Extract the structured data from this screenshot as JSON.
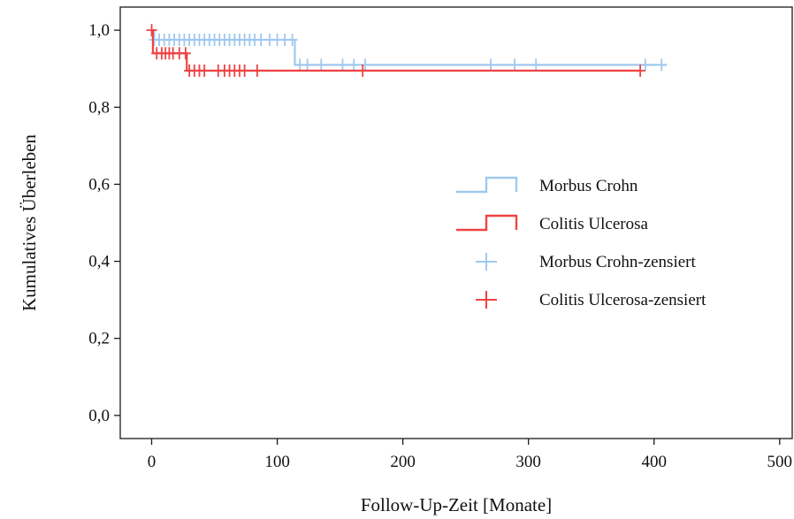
{
  "chart_data": {
    "type": "line",
    "subtype": "kaplan-meier",
    "title": "",
    "xlabel": "Follow-Up-Zeit [Monate]",
    "ylabel": "Kumulatives Überleben",
    "xlim": [
      -25,
      510
    ],
    "ylim": [
      -0.06,
      1.06
    ],
    "xticks": [
      0,
      100,
      200,
      300,
      400,
      500
    ],
    "xtick_labels": [
      "0",
      "100",
      "200",
      "300",
      "400",
      "500"
    ],
    "yticks": [
      0.0,
      0.2,
      0.4,
      0.6,
      0.8,
      1.0
    ],
    "ytick_labels": [
      "0,0",
      "0,2",
      "0,4",
      "0,6",
      "0,8",
      "1,0"
    ],
    "grid": false,
    "legend_position": "center-right",
    "series": [
      {
        "name": "Morbus Crohn",
        "color": "#9fc9ee",
        "steps": [
          [
            0,
            1.0
          ],
          [
            2,
            0.975
          ],
          [
            114,
            0.91
          ],
          [
            410,
            0.91
          ]
        ],
        "censored_name": "Morbus Crohn-zensiert",
        "censored_x": [
          2,
          6,
          10,
          14,
          18,
          22,
          26,
          30,
          34,
          38,
          42,
          46,
          50,
          54,
          58,
          62,
          66,
          70,
          74,
          78,
          82,
          87,
          94,
          100,
          106,
          112,
          118,
          124,
          135,
          152,
          161,
          170,
          270,
          289,
          306,
          393,
          406
        ],
        "censored_y": [
          0.975,
          0.975,
          0.975,
          0.975,
          0.975,
          0.975,
          0.975,
          0.975,
          0.975,
          0.975,
          0.975,
          0.975,
          0.975,
          0.975,
          0.975,
          0.975,
          0.975,
          0.975,
          0.975,
          0.975,
          0.975,
          0.975,
          0.975,
          0.975,
          0.975,
          0.975,
          0.91,
          0.91,
          0.91,
          0.91,
          0.91,
          0.91,
          0.91,
          0.91,
          0.91,
          0.91,
          0.91
        ]
      },
      {
        "name": "Colitis Ulcerosa",
        "color": "#ef4343",
        "steps": [
          [
            0,
            1.0
          ],
          [
            1,
            0.94
          ],
          [
            28,
            0.895
          ],
          [
            390,
            0.895
          ]
        ],
        "censored_name": "Colitis Ulcerosa-zensiert",
        "censored_x": [
          0,
          4,
          8,
          11,
          14,
          17,
          22,
          27,
          30,
          34,
          38,
          42,
          53,
          58,
          62,
          66,
          70,
          74,
          84,
          168,
          389
        ],
        "censored_y": [
          1.0,
          0.94,
          0.94,
          0.94,
          0.94,
          0.94,
          0.94,
          0.94,
          0.895,
          0.895,
          0.895,
          0.895,
          0.895,
          0.895,
          0.895,
          0.895,
          0.895,
          0.895,
          0.895,
          0.895,
          0.895
        ]
      }
    ],
    "legend": [
      {
        "label": "Morbus Crohn",
        "kind": "step",
        "color": "#9fc9ee"
      },
      {
        "label": "Colitis Ulcerosa",
        "kind": "step",
        "color": "#ef4343"
      },
      {
        "label": "Morbus Crohn-zensiert",
        "kind": "cross",
        "color": "#9fc9ee"
      },
      {
        "label": "Colitis Ulcerosa-zensiert",
        "kind": "cross",
        "color": "#ef4343"
      }
    ]
  }
}
